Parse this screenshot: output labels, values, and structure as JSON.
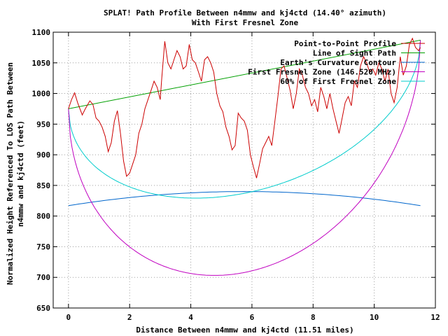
{
  "chart_data": {
    "type": "line",
    "title": "SPLAT! Path Profile Between n4mmw and kj4ctd (14.40° azimuth)",
    "subtitle": "With First Fresnel Zone",
    "xlabel": "Distance Between n4mmw and kj4ctd (11.51 miles)",
    "ylabel_lines": [
      "Normalized Height Referenced To LOS Path Between",
      "n4mmw and kj4ctd (feet)"
    ],
    "xlim": [
      -0.5,
      12
    ],
    "ylim": [
      650,
      1100
    ],
    "xticks": [
      0,
      2,
      4,
      6,
      8,
      10,
      12
    ],
    "yticks": [
      650,
      700,
      750,
      800,
      850,
      900,
      950,
      1000,
      1050,
      1100
    ],
    "grid": true,
    "legend_position": "top-right",
    "series": [
      {
        "name": "Point-to-Point Profile",
        "color": "#cc0000",
        "x": [
          0,
          0.1,
          0.2,
          0.3,
          0.45,
          0.55,
          0.7,
          0.8,
          0.9,
          1.0,
          1.1,
          1.2,
          1.3,
          1.4,
          1.5,
          1.6,
          1.7,
          1.8,
          1.9,
          2.0,
          2.1,
          2.2,
          2.3,
          2.4,
          2.5,
          2.6,
          2.7,
          2.8,
          2.9,
          3.0,
          3.05,
          3.15,
          3.25,
          3.35,
          3.45,
          3.55,
          3.65,
          3.75,
          3.85,
          3.95,
          4.05,
          4.15,
          4.25,
          4.35,
          4.45,
          4.55,
          4.65,
          4.75,
          4.85,
          4.95,
          5.05,
          5.15,
          5.25,
          5.35,
          5.45,
          5.55,
          5.65,
          5.75,
          5.85,
          5.95,
          6.05,
          6.15,
          6.25,
          6.35,
          6.45,
          6.55,
          6.65,
          6.75,
          6.85,
          6.95,
          7.05,
          7.15,
          7.25,
          7.35,
          7.45,
          7.55,
          7.65,
          7.75,
          7.85,
          7.95,
          8.05,
          8.15,
          8.25,
          8.35,
          8.45,
          8.55,
          8.65,
          8.75,
          8.85,
          8.95,
          9.05,
          9.15,
          9.25,
          9.35,
          9.45,
          9.55,
          9.65,
          9.75,
          9.85,
          9.95,
          10.05,
          10.15,
          10.25,
          10.35,
          10.45,
          10.55,
          10.65,
          10.75,
          10.85,
          10.95,
          11.05,
          11.15,
          11.25,
          11.35,
          11.45,
          11.51
        ],
        "y": [
          975,
          990,
          1001,
          985,
          965,
          975,
          988,
          982,
          960,
          955,
          945,
          930,
          905,
          920,
          955,
          972,
          935,
          890,
          865,
          870,
          885,
          900,
          935,
          950,
          975,
          990,
          1005,
          1020,
          1010,
          990,
          1025,
          1085,
          1050,
          1040,
          1055,
          1070,
          1060,
          1040,
          1045,
          1080,
          1055,
          1050,
          1035,
          1020,
          1055,
          1060,
          1050,
          1035,
          1000,
          980,
          970,
          945,
          930,
          908,
          915,
          968,
          960,
          955,
          940,
          900,
          880,
          862,
          885,
          910,
          920,
          930,
          915,
          955,
          995,
          1040,
          1045,
          1025,
          1005,
          975,
          1000,
          1040,
          1030,
          1010,
          1000,
          980,
          990,
          970,
          1010,
          995,
          975,
          1000,
          975,
          955,
          935,
          960,
          985,
          995,
          980,
          1020,
          1010,
          1045,
          1060,
          1050,
          1035,
          1040,
          1030,
          1050,
          1040,
          1020,
          1040,
          1000,
          985,
          1010,
          1060,
          1030,
          1045,
          1080,
          1090,
          1075,
          1070,
          1075
        ]
      },
      {
        "name": "Line of Sight Path",
        "color": "#00a000",
        "x": [
          0,
          11.51
        ],
        "y": [
          975,
          1087
        ]
      },
      {
        "name": "Earth's Curvature Contour",
        "color": "#0066cc",
        "curve": "parabola",
        "x": [
          0,
          5.755,
          11.51
        ],
        "y": [
          817,
          840,
          817
        ]
      },
      {
        "name": "First Fresnel Zone (146.520 MHz)",
        "color": "#c000c0",
        "curve": "fresnel",
        "zone_fraction": 1.0,
        "radius_mid_ft": 323
      },
      {
        "name": "60% of First Fresnel Zone",
        "color": "#00cccc",
        "curve": "fresnel",
        "zone_fraction": 0.6,
        "radius_mid_ft": 323
      }
    ]
  }
}
